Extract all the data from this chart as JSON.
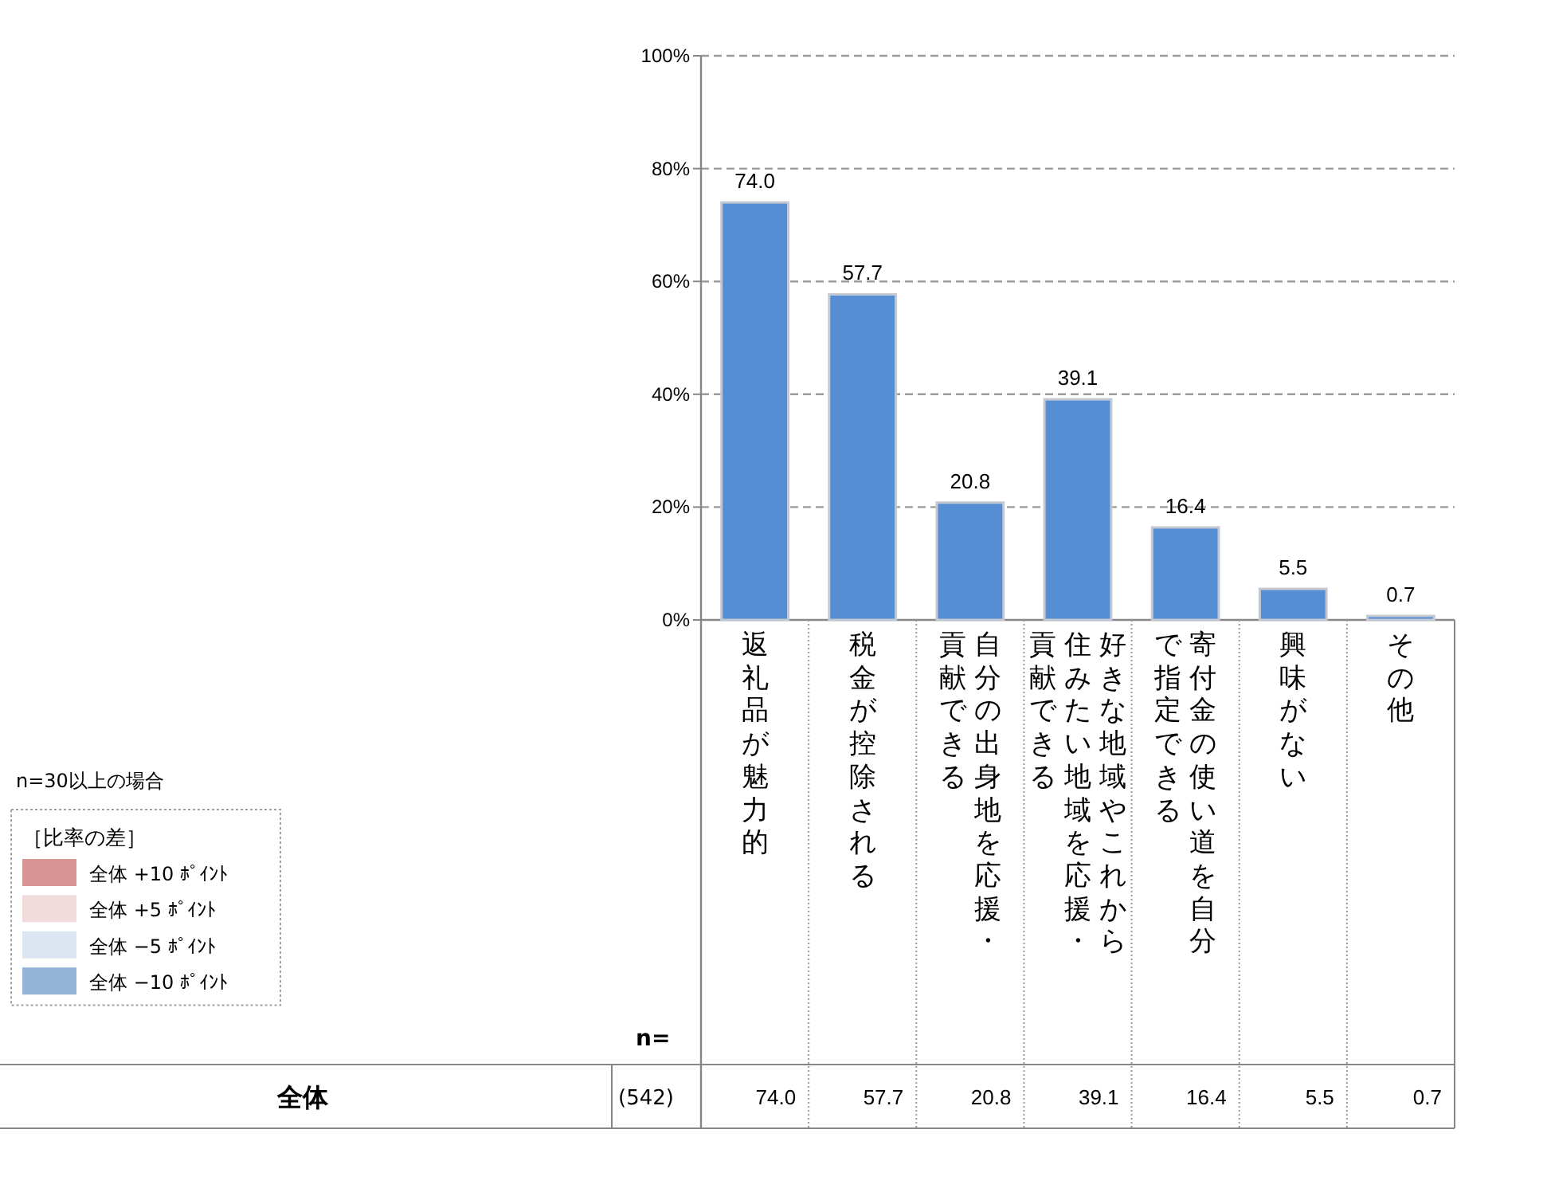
{
  "chart_data": [
    {
      "type": "bar",
      "categories": [
        "返礼品が魅力的",
        "税金が控除される",
        "自分の出身地を応援・貢献できる",
        "好きな地域やこれから住みたい地域を応援・貢献できる",
        "寄付金の使い道を自分で指定できる",
        "興味がない",
        "その他"
      ],
      "values": [
        74.0,
        57.7,
        20.8,
        39.1,
        16.4,
        5.5,
        0.7
      ],
      "value_labels": [
        "74.0",
        "57.7",
        "20.8",
        "39.1",
        "16.4",
        "5.5",
        "0.7"
      ],
      "color": "#558ed5",
      "ylim": [
        0,
        100
      ],
      "yticks": [
        {
          "value": 0,
          "label": "0%"
        },
        {
          "value": 20,
          "label": "20%"
        },
        {
          "value": 40,
          "label": "40%"
        },
        {
          "value": 60,
          "label": "60%"
        },
        {
          "value": 80,
          "label": "80%"
        },
        {
          "value": 100,
          "label": "100%"
        }
      ],
      "grid": "y",
      "annotations": [
        "n=",
        "全体",
        "(542)"
      ]
    },
    {
      "type": "other",
      "title": "［比率の差］",
      "categories": [
        "全体 +10 ﾎﾟｲﾝﾄ",
        "全体 +5 ﾎﾟｲﾝﾄ",
        "全体 −5 ﾎﾟｲﾝﾄ",
        "全体 −10 ﾎﾟｲﾝﾄ"
      ],
      "colors": [
        "#d99594",
        "#f2dcdb",
        "#dce6f2",
        "#95b3d7"
      ],
      "annotations": [
        "n=30以上の場合"
      ]
    }
  ]
}
